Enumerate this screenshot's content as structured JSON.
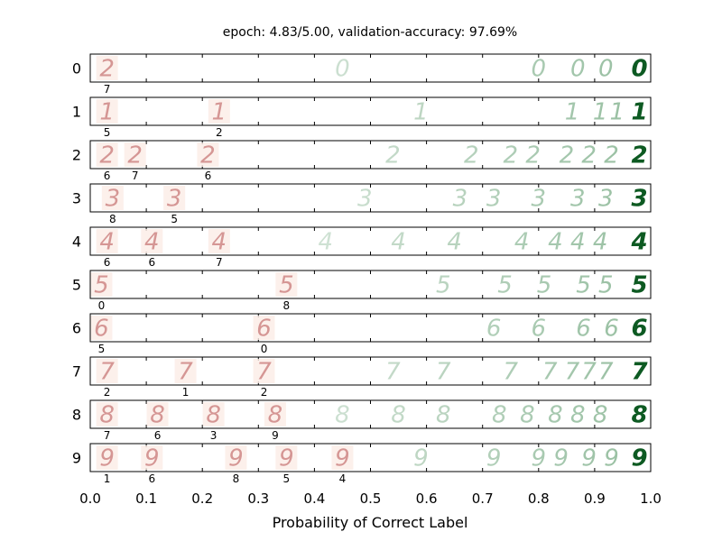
{
  "chart_data": {
    "type": "scatter",
    "title": "epoch: 4.83/5.00, validation-accuracy: 97.69%",
    "xlabel": "Probability of Correct Label",
    "xlim": [
      0.0,
      1.0
    ],
    "x_ticks": [
      "0.0",
      "0.1",
      "0.2",
      "0.3",
      "0.4",
      "0.5",
      "0.6",
      "0.7",
      "0.8",
      "0.9",
      "1.0"
    ],
    "rows": [
      {
        "label": "0",
        "points": [
          {
            "p": 0.03,
            "glyph": "2",
            "wrong": "7"
          },
          {
            "p": 0.45,
            "glyph": "0"
          },
          {
            "p": 0.8,
            "glyph": "0"
          },
          {
            "p": 0.87,
            "glyph": "0"
          },
          {
            "p": 0.92,
            "glyph": "0"
          },
          {
            "p": 0.98,
            "glyph": "0"
          }
        ]
      },
      {
        "label": "1",
        "points": [
          {
            "p": 0.03,
            "glyph": "1",
            "wrong": "5"
          },
          {
            "p": 0.23,
            "glyph": "1",
            "wrong": "2"
          },
          {
            "p": 0.59,
            "glyph": "1"
          },
          {
            "p": 0.86,
            "glyph": "1"
          },
          {
            "p": 0.91,
            "glyph": "1"
          },
          {
            "p": 0.94,
            "glyph": "1"
          },
          {
            "p": 0.98,
            "glyph": "1"
          }
        ]
      },
      {
        "label": "2",
        "points": [
          {
            "p": 0.03,
            "glyph": "2",
            "wrong": "6"
          },
          {
            "p": 0.08,
            "glyph": "2",
            "wrong": "7"
          },
          {
            "p": 0.21,
            "glyph": "2",
            "wrong": "6"
          },
          {
            "p": 0.54,
            "glyph": "2"
          },
          {
            "p": 0.68,
            "glyph": "2"
          },
          {
            "p": 0.75,
            "glyph": "2"
          },
          {
            "p": 0.79,
            "glyph": "2"
          },
          {
            "p": 0.85,
            "glyph": "2"
          },
          {
            "p": 0.89,
            "glyph": "2"
          },
          {
            "p": 0.93,
            "glyph": "2"
          },
          {
            "p": 0.98,
            "glyph": "2"
          }
        ]
      },
      {
        "label": "3",
        "points": [
          {
            "p": 0.04,
            "glyph": "3",
            "wrong": "8"
          },
          {
            "p": 0.15,
            "glyph": "3",
            "wrong": "5"
          },
          {
            "p": 0.49,
            "glyph": "3"
          },
          {
            "p": 0.66,
            "glyph": "3"
          },
          {
            "p": 0.72,
            "glyph": "3"
          },
          {
            "p": 0.8,
            "glyph": "3"
          },
          {
            "p": 0.87,
            "glyph": "3"
          },
          {
            "p": 0.92,
            "glyph": "3"
          },
          {
            "p": 0.98,
            "glyph": "3"
          }
        ]
      },
      {
        "label": "4",
        "points": [
          {
            "p": 0.03,
            "glyph": "4",
            "wrong": "6"
          },
          {
            "p": 0.11,
            "glyph": "4",
            "wrong": "6"
          },
          {
            "p": 0.23,
            "glyph": "4",
            "wrong": "7"
          },
          {
            "p": 0.42,
            "glyph": "4"
          },
          {
            "p": 0.55,
            "glyph": "4"
          },
          {
            "p": 0.65,
            "glyph": "4"
          },
          {
            "p": 0.77,
            "glyph": "4"
          },
          {
            "p": 0.83,
            "glyph": "4"
          },
          {
            "p": 0.87,
            "glyph": "4"
          },
          {
            "p": 0.91,
            "glyph": "4"
          },
          {
            "p": 0.98,
            "glyph": "4"
          }
        ]
      },
      {
        "label": "5",
        "points": [
          {
            "p": 0.02,
            "glyph": "5",
            "wrong": "0"
          },
          {
            "p": 0.35,
            "glyph": "5",
            "wrong": "8"
          },
          {
            "p": 0.63,
            "glyph": "5"
          },
          {
            "p": 0.74,
            "glyph": "5"
          },
          {
            "p": 0.81,
            "glyph": "5"
          },
          {
            "p": 0.88,
            "glyph": "5"
          },
          {
            "p": 0.92,
            "glyph": "5"
          },
          {
            "p": 0.98,
            "glyph": "5"
          }
        ]
      },
      {
        "label": "6",
        "points": [
          {
            "p": 0.02,
            "glyph": "6",
            "wrong": "5"
          },
          {
            "p": 0.31,
            "glyph": "6",
            "wrong": "0"
          },
          {
            "p": 0.72,
            "glyph": "6"
          },
          {
            "p": 0.8,
            "glyph": "6"
          },
          {
            "p": 0.88,
            "glyph": "6"
          },
          {
            "p": 0.93,
            "glyph": "6"
          },
          {
            "p": 0.98,
            "glyph": "6"
          }
        ]
      },
      {
        "label": "7",
        "points": [
          {
            "p": 0.03,
            "glyph": "7",
            "wrong": "2"
          },
          {
            "p": 0.17,
            "glyph": "7",
            "wrong": "1"
          },
          {
            "p": 0.31,
            "glyph": "7",
            "wrong": "2"
          },
          {
            "p": 0.54,
            "glyph": "7"
          },
          {
            "p": 0.63,
            "glyph": "7"
          },
          {
            "p": 0.75,
            "glyph": "7"
          },
          {
            "p": 0.82,
            "glyph": "7"
          },
          {
            "p": 0.86,
            "glyph": "7"
          },
          {
            "p": 0.89,
            "glyph": "7"
          },
          {
            "p": 0.92,
            "glyph": "7"
          },
          {
            "p": 0.98,
            "glyph": "7"
          }
        ]
      },
      {
        "label": "8",
        "points": [
          {
            "p": 0.03,
            "glyph": "8",
            "wrong": "7"
          },
          {
            "p": 0.12,
            "glyph": "8",
            "wrong": "6"
          },
          {
            "p": 0.22,
            "glyph": "8",
            "wrong": "3"
          },
          {
            "p": 0.33,
            "glyph": "8",
            "wrong": "9"
          },
          {
            "p": 0.45,
            "glyph": "8"
          },
          {
            "p": 0.55,
            "glyph": "8"
          },
          {
            "p": 0.63,
            "glyph": "8"
          },
          {
            "p": 0.73,
            "glyph": "8"
          },
          {
            "p": 0.78,
            "glyph": "8"
          },
          {
            "p": 0.83,
            "glyph": "8"
          },
          {
            "p": 0.87,
            "glyph": "8"
          },
          {
            "p": 0.91,
            "glyph": "8"
          },
          {
            "p": 0.98,
            "glyph": "8"
          }
        ]
      },
      {
        "label": "9",
        "points": [
          {
            "p": 0.03,
            "glyph": "9",
            "wrong": "1"
          },
          {
            "p": 0.11,
            "glyph": "9",
            "wrong": "6"
          },
          {
            "p": 0.26,
            "glyph": "9",
            "wrong": "8"
          },
          {
            "p": 0.35,
            "glyph": "9",
            "wrong": "5"
          },
          {
            "p": 0.45,
            "glyph": "9",
            "wrong": "4"
          },
          {
            "p": 0.59,
            "glyph": "9"
          },
          {
            "p": 0.72,
            "glyph": "9"
          },
          {
            "p": 0.8,
            "glyph": "9"
          },
          {
            "p": 0.84,
            "glyph": "9"
          },
          {
            "p": 0.89,
            "glyph": "9"
          },
          {
            "p": 0.93,
            "glyph": "9"
          },
          {
            "p": 0.98,
            "glyph": "9"
          }
        ]
      }
    ],
    "colors": {
      "wrong": "#c87878",
      "wrong_bg": "#fbece6",
      "correct": "#7cae88",
      "correct_strong": "#0d5a22"
    }
  }
}
